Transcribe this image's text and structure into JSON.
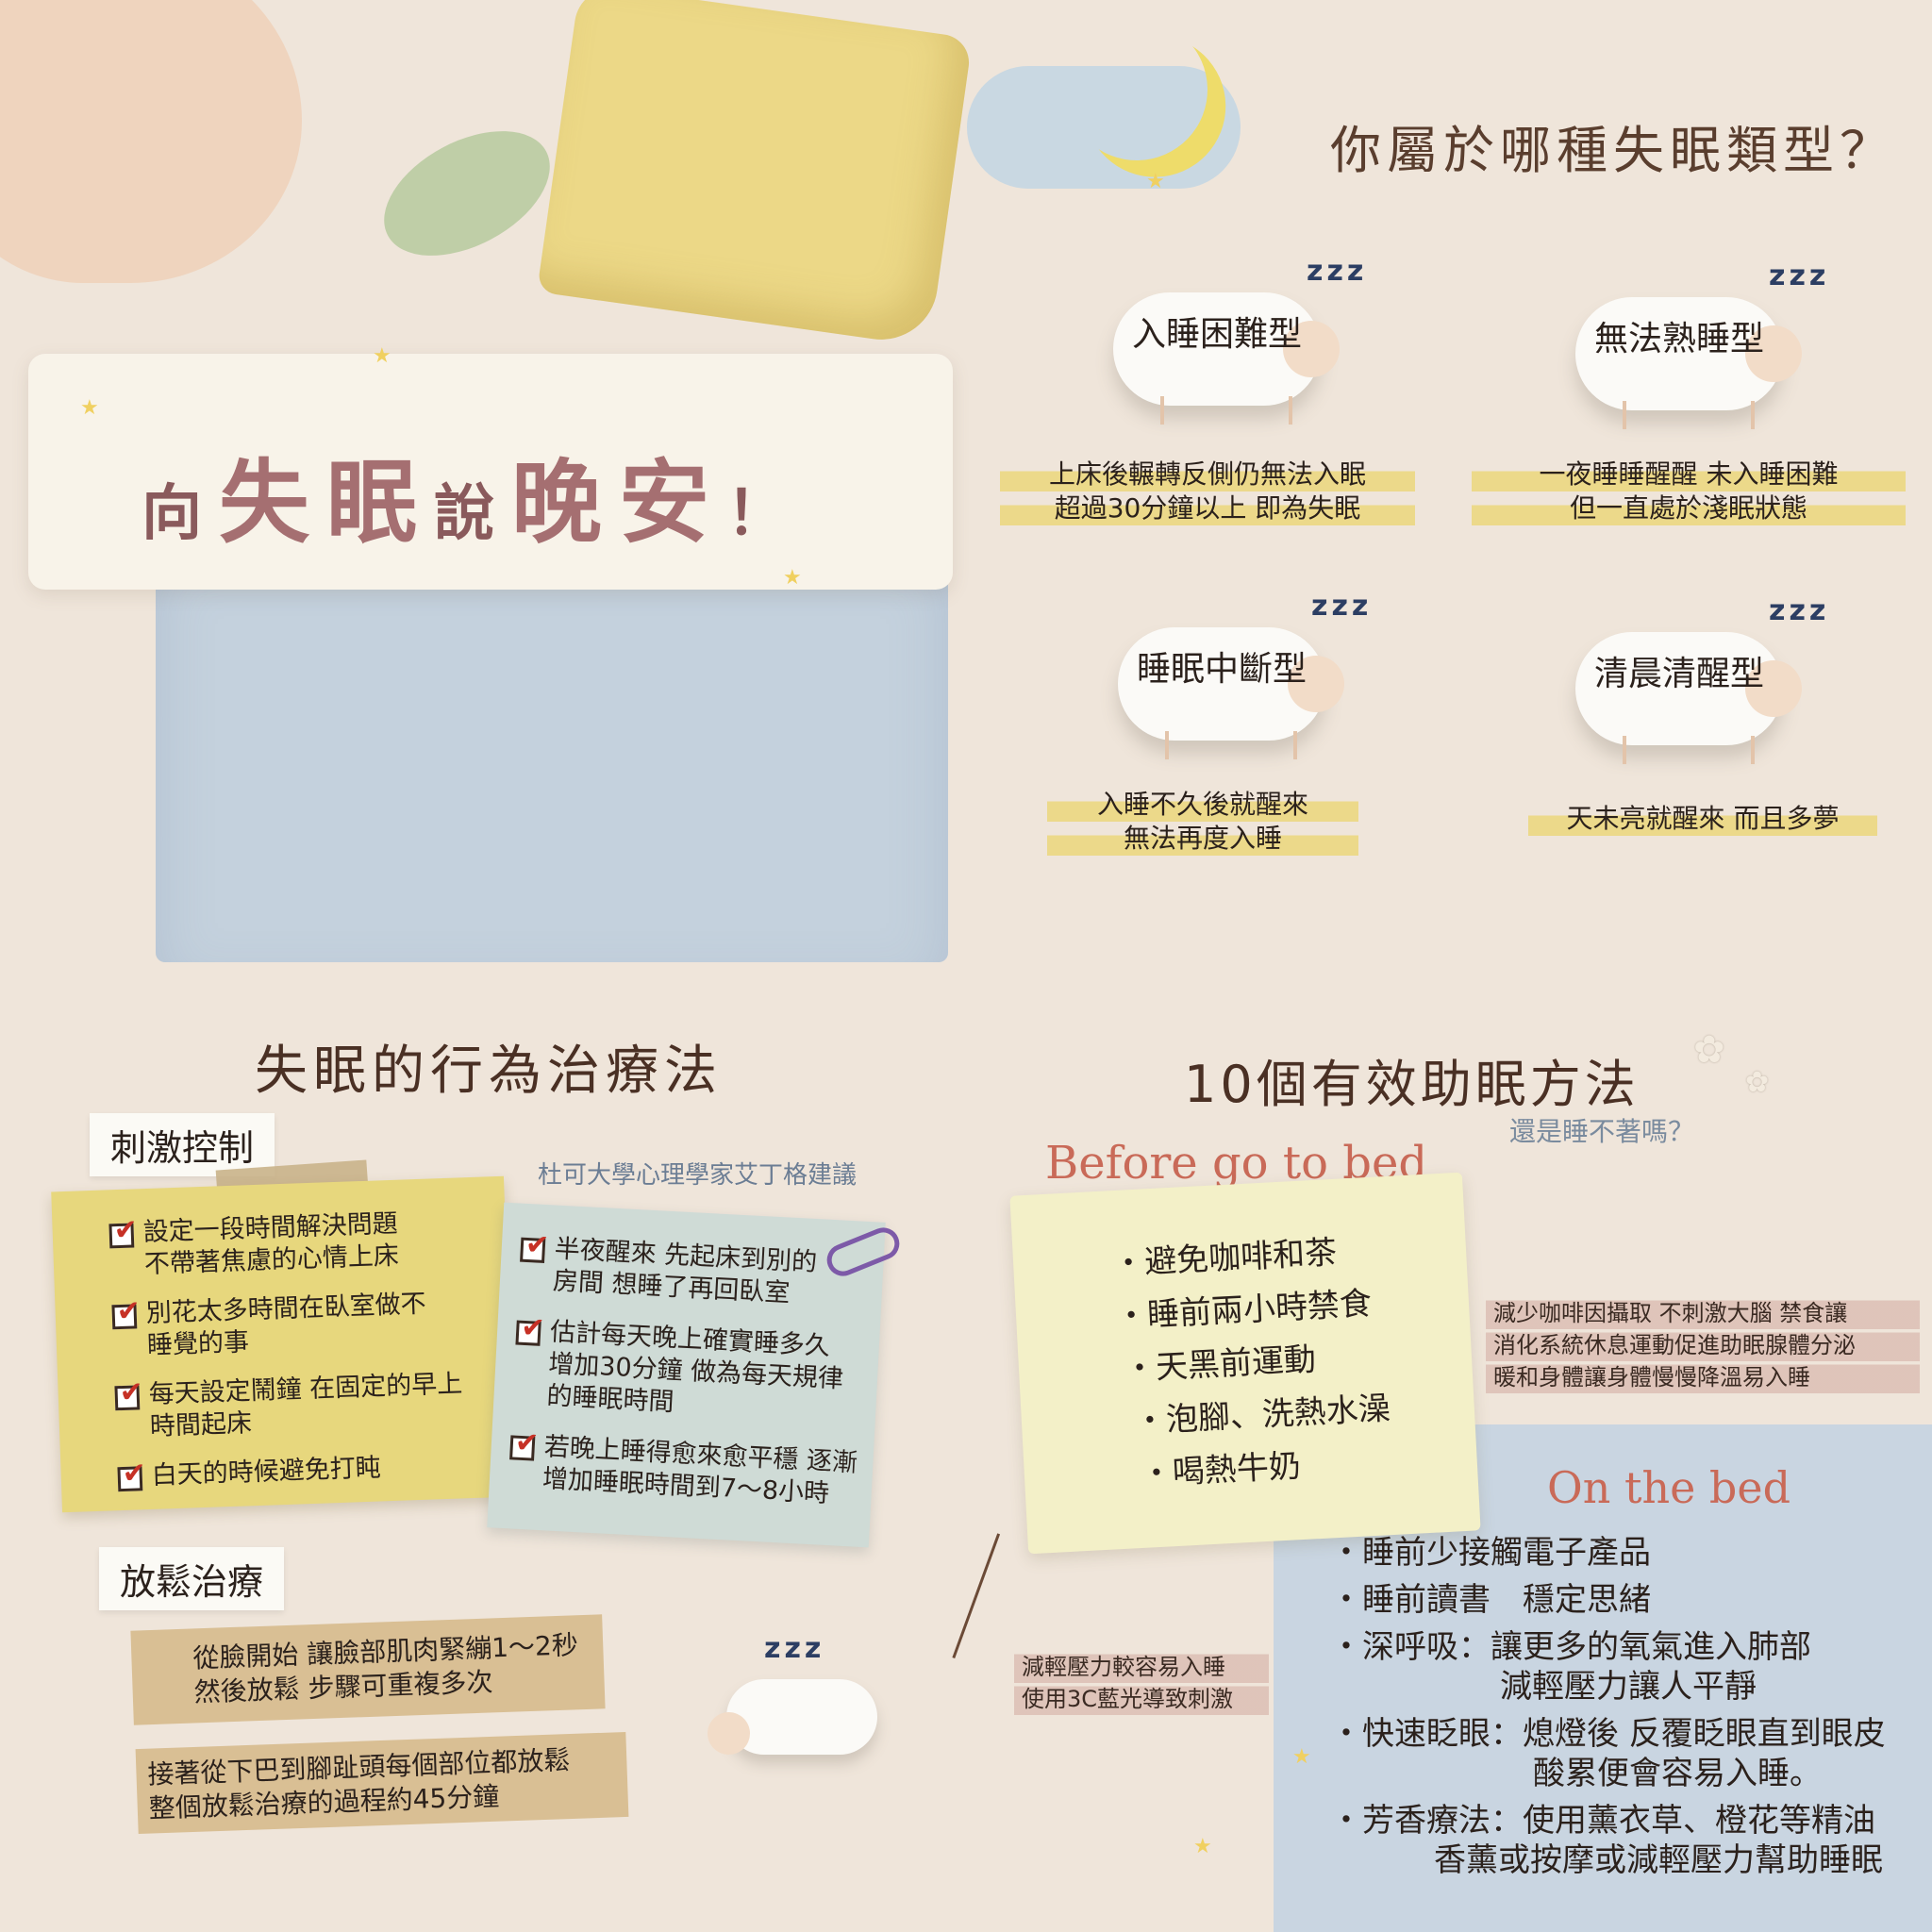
{
  "title": {
    "part1": "向",
    "part2": "失",
    "part3": "眠",
    "part4": "說",
    "part5": "晚",
    "part6": "安",
    "part7": "！"
  },
  "types_heading": "你屬於哪種失眠類型？",
  "zzz": "zzz",
  "types": [
    {
      "name": "入睡困難型",
      "desc1": "上床後輾轉反側仍無法入眠",
      "desc2": "超過30分鐘以上 即為失眠"
    },
    {
      "name": "無法熟睡型",
      "desc1": "一夜睡睡醒醒 未入睡困難",
      "desc2": "但一直處於淺眠狀態"
    },
    {
      "name": "睡眠中斷型",
      "desc1": "入睡不久後就醒來",
      "desc2": "無法再度入睡"
    },
    {
      "name": "清晨清醒型",
      "desc1": "天未亮就醒來 而且多夢",
      "desc2": ""
    }
  ],
  "behavior": {
    "heading": "失眠的行為治療法",
    "stimulus_label": "刺激控制",
    "advisor": "杜可大學心理學家艾丁格建議",
    "yellow_items": [
      {
        "l1": "設定一段時間解決問題",
        "l2": "不帶著焦慮的心情上床"
      },
      {
        "l1": "別花太多時間在臥室做不",
        "l2": "睡覺的事"
      },
      {
        "l1": "每天設定鬧鐘 在固定的早上",
        "l2": "時間起床"
      },
      {
        "l1": "白天的時候避免打盹",
        "l2": ""
      }
    ],
    "blue_items": [
      {
        "l1": "半夜醒來 先起床到別的",
        "l2": "房間 想睡了再回臥室",
        "l3": ""
      },
      {
        "l1": "估計每天晚上確實睡多久",
        "l2": "增加30分鐘 做為每天規律",
        "l3": "的睡眠時間"
      },
      {
        "l1": "若晚上睡得愈來愈平穩 逐漸",
        "l2": "增加睡眠時間到7～8小時",
        "l3": ""
      }
    ],
    "relax_label": "放鬆治療",
    "relax1_l1": "從臉開始 讓臉部肌肉緊繃1～2秒",
    "relax1_l2": "然後放鬆 步驟可重複多次",
    "relax2_l1": "接著從下巴到腳趾頭每個部位都放鬆",
    "relax2_l2": "整個放鬆治療的過程約45分鐘"
  },
  "tips": {
    "heading": "10個有效助眠方法",
    "subq": "還是睡不著嗎？",
    "before_label": "Before go to bed",
    "before_items": [
      "・避免咖啡和茶",
      "・睡前兩小時禁食",
      "・天黑前運動",
      "・泡腳、洗熱水澡",
      "・喝熱牛奶"
    ],
    "note_right_1": "減少咖啡因攝取 不刺激大腦 禁食讓",
    "note_right_2": "消化系統休息運動促進助眠腺體分泌",
    "note_right_3": "暖和身體讓身體慢慢降溫易入睡",
    "note_left_1": "減輕壓力較容易入睡",
    "note_left_2": "使用3C藍光導致刺激",
    "onbed_label": "On the bed",
    "bed_items": [
      {
        "l1": "・睡前少接觸電子產品",
        "l2": ""
      },
      {
        "l1": "・睡前讀書　穩定思緒",
        "l2": ""
      },
      {
        "l1": "・深呼吸：讓更多的氧氣進入肺部",
        "l2": "減輕壓力讓人平靜"
      },
      {
        "l1": "・快速眨眼：熄燈後 反覆眨眼直到眼皮",
        "l2": "酸累便會容易入睡。"
      },
      {
        "l1": "・芳香療法：使用薰衣草、橙花等精油",
        "l2": "香薰或按摩或減輕壓力幫助睡眠"
      }
    ]
  },
  "colors": {
    "background": "#efe5da",
    "title": "#a56f71",
    "heading": "#4a3024",
    "accent_red": "#c96a58",
    "check_red": "#c63126"
  }
}
